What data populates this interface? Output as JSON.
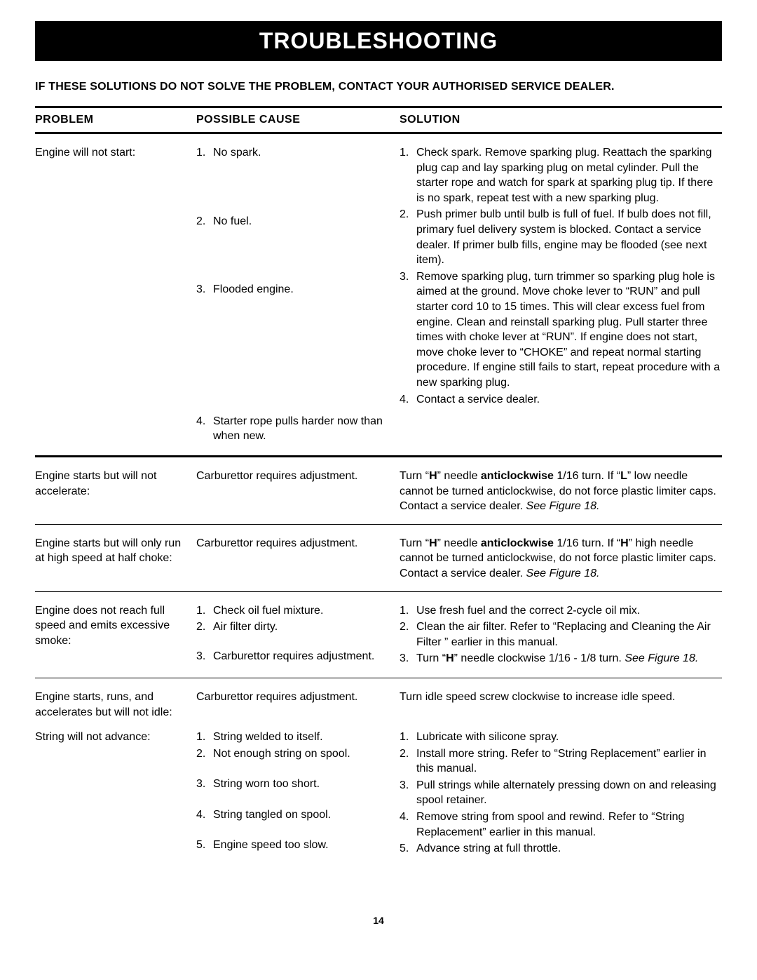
{
  "title": "TROUBLESHOOTING",
  "notice": "IF THESE SOLUTIONS DO NOT SOLVE THE PROBLEM, CONTACT YOUR AUTHORISED SERVICE DEALER.",
  "columns": {
    "problem": "PROBLEM",
    "cause": "POSSIBLE  CAUSE",
    "solution": "SOLUTION"
  },
  "page_number": "14",
  "rows": [
    {
      "problem": "Engine will not start:",
      "causes": [
        "No spark.",
        "No fuel.",
        "Flooded engine.",
        "Starter rope pulls harder now than when new."
      ],
      "solutions": [
        "Check spark. Remove sparking plug. Reattach the sparking plug cap and lay sparking plug on metal cylinder. Pull the starter rope and watch for spark at sparking plug tip. If there is no spark, repeat test with a new sparking plug.",
        "Push primer bulb until bulb is full of fuel. If bulb does not fill, primary fuel delivery system is blocked. Contact a service dealer. If primer bulb fills, engine may be flooded (see next item).",
        "Remove sparking plug, turn trimmer so sparking plug hole is aimed at the ground. Move choke lever to “RUN” and pull starter cord 10 to 15 times. This will clear excess fuel from engine. Clean and reinstall sparking plug. Pull starter three times with choke lever at “RUN”. If engine does not start, move choke lever to “CHOKE” and repeat normal starting procedure. If engine still fails to start, repeat procedure with a new sparking plug.",
        "Contact a service dealer."
      ]
    },
    {
      "problem": "Engine starts but will not accelerate:",
      "cause_text": "Carburettor requires adjustment.",
      "solution_html": "Turn “<b>H</b>” needle <b>anticlockwise</b> 1/16  turn.  If “<b>L</b>” low needle cannot be turned anticlockwise, do not force plastic limiter caps. Contact a service dealer. <em class='fig'>See Figure 18.</em>"
    },
    {
      "problem": "Engine starts but will only run at high speed at half choke:",
      "cause_text": "Carburettor requires adjustment.",
      "solution_html": "Turn “<b>H</b>” needle <b>anticlockwise</b> 1/16 turn. If “<b>H</b>” high needle cannot be turned anticlockwise, do not force plastic limiter caps. Contact a service dealer. <em class='fig'>See Figure 18.</em>"
    },
    {
      "problem": "Engine does not reach full speed and emits excessive smoke:",
      "causes": [
        "Check oil fuel mixture.",
        "Air filter dirty.",
        "Carburettor requires adjustment."
      ],
      "solutions_html": [
        "Use fresh fuel and the correct 2-cycle oil mix.",
        "Clean the air filter. Refer to “Replacing and Cleaning the Air Filter ” earlier in this manual.",
        "Turn “<b>H</b>” needle clockwise 1/16 - 1/8 turn. <em class='fig'>See Figure 18.</em>"
      ]
    },
    {
      "problem": "Engine starts, runs, and accelerates but will not idle:",
      "cause_text": "Carburettor requires adjustment.",
      "solution_text": "Turn idle speed screw clockwise to increase idle speed."
    },
    {
      "problem": "String will not advance:",
      "causes": [
        "String welded to itself.",
        "Not enough string on spool.",
        "String worn too short.",
        "String tangled on spool.",
        "Engine speed too slow."
      ],
      "solutions": [
        "Lubricate with silicone spray.",
        "Install more string. Refer to “String Replace­ment” earlier in this manual.",
        "Pull strings while alternately pressing down on and releasing spool retainer.",
        "Remove string from spool and rewind. Refer to “String Replacement” earlier in this manual.",
        "Advance string at full throttle."
      ]
    }
  ]
}
